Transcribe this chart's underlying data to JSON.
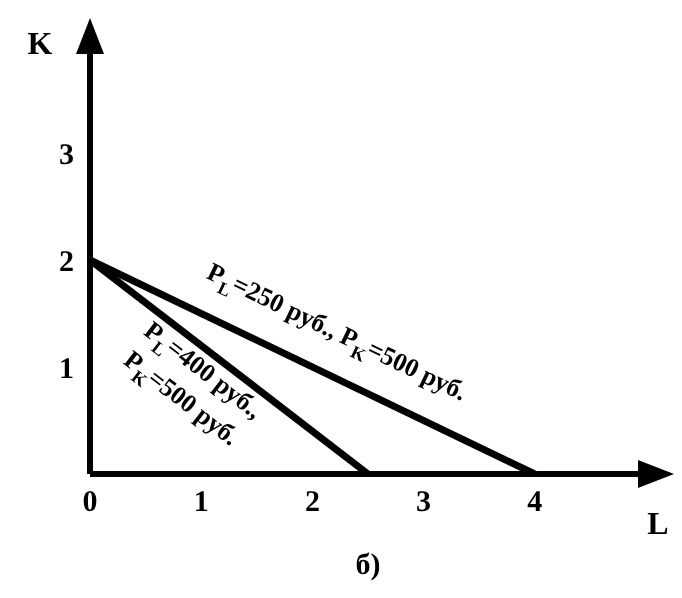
{
  "chart_data": {
    "type": "line",
    "xlabel": "L",
    "ylabel": "K",
    "xlim": [
      0,
      5
    ],
    "ylim": [
      0,
      4
    ],
    "xticks": [
      0,
      1,
      2,
      3,
      4
    ],
    "yticks": [
      1,
      2,
      3
    ],
    "marker": "none",
    "line_style": "solid",
    "series": [
      {
        "color": "#000000",
        "x": [
          0,
          4
        ],
        "values": [
          2,
          0
        ]
      },
      {
        "color": "#000000",
        "x": [
          0,
          2.5
        ],
        "values": [
          2,
          0
        ]
      }
    ],
    "annotations": [
      "P$_{L}$=250 руб., P$_{K}$=500 руб.",
      "P$_{L}$=400 руб.,",
      "P$_{K}$=500 руб.",
      "б)"
    ]
  }
}
